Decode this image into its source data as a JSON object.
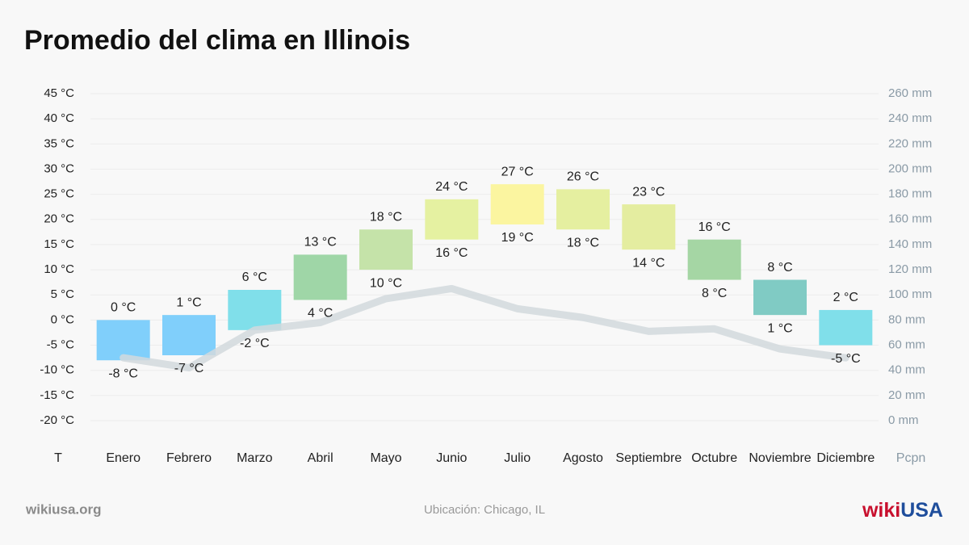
{
  "chart_data": {
    "type": "bar",
    "title": "Promedio del clima en Illinois",
    "ylabel": "T",
    "y2label": "Pcpn",
    "categories": [
      "Enero",
      "Febrero",
      "Marzo",
      "Abril",
      "Mayo",
      "Junio",
      "Julio",
      "Agosto",
      "Septiembre",
      "Octubre",
      "Noviembre",
      "Diciembre"
    ],
    "colors": [
      "#80cffb",
      "#80cffb",
      "#80dfea",
      "#9fd6a7",
      "#c5e3a9",
      "#e5f1a1",
      "#fbf5a0",
      "#e5efa0",
      "#e4eda0",
      "#a5d6a4",
      "#80cbc4",
      "#80dfea"
    ],
    "series": [
      {
        "values": [
          0,
          1,
          6,
          13,
          18,
          24,
          27,
          26,
          23,
          16,
          8,
          2
        ],
        "value_labels": [
          "0 °C",
          "1 °C",
          "6 °C",
          "13 °C",
          "18 °C",
          "24 °C",
          "27 °C",
          "26 °C",
          "23 °C",
          "16 °C",
          "8 °C",
          "2 °C"
        ]
      },
      {
        "values": [
          -8,
          -7,
          -2,
          4,
          10,
          16,
          19,
          18,
          14,
          8,
          1,
          -5
        ],
        "value_labels": [
          "-8 °C",
          "-7 °C",
          "-2 °C",
          "4 °C",
          "10 °C",
          "16 °C",
          "19 °C",
          "18 °C",
          "14 °C",
          "8 °C",
          "1 °C",
          "-5 °C"
        ]
      },
      {
        "type": "line",
        "axis": "y2",
        "color": "#d2d9dd",
        "values": [
          50,
          42,
          72,
          78,
          97,
          105,
          89,
          82,
          71,
          73,
          57,
          50
        ]
      }
    ],
    "ylim": [
      -20,
      45
    ],
    "yticks": [
      {
        "value": -20,
        "label": "-20 °C"
      },
      {
        "value": -15,
        "label": "-15 °C"
      },
      {
        "value": -10,
        "label": "-10 °C"
      },
      {
        "value": -5,
        "label": "-5 °C"
      },
      {
        "value": 0,
        "label": "0 °C"
      },
      {
        "value": 5,
        "label": "5 °C"
      },
      {
        "value": 10,
        "label": "10 °C"
      },
      {
        "value": 15,
        "label": "15 °C"
      },
      {
        "value": 20,
        "label": "20 °C"
      },
      {
        "value": 25,
        "label": "25 °C"
      },
      {
        "value": 30,
        "label": "30 °C"
      },
      {
        "value": 35,
        "label": "35 °C"
      },
      {
        "value": 40,
        "label": "40 °C"
      },
      {
        "value": 45,
        "label": "45 °C"
      }
    ],
    "y2lim": [
      0,
      260
    ],
    "y2ticks": [
      {
        "value": 0,
        "label": "0 mm"
      },
      {
        "value": 20,
        "label": "20 mm"
      },
      {
        "value": 40,
        "label": "40 mm"
      },
      {
        "value": 60,
        "label": "60 mm"
      },
      {
        "value": 80,
        "label": "80 mm"
      },
      {
        "value": 100,
        "label": "100 mm"
      },
      {
        "value": 120,
        "label": "120 mm"
      },
      {
        "value": 140,
        "label": "140 mm"
      },
      {
        "value": 160,
        "label": "160 mm"
      },
      {
        "value": 180,
        "label": "180 mm"
      },
      {
        "value": 200,
        "label": "200 mm"
      },
      {
        "value": 220,
        "label": "220 mm"
      },
      {
        "value": 240,
        "label": "240 mm"
      },
      {
        "value": 260,
        "label": "260 mm"
      }
    ],
    "grid": true
  },
  "footer": {
    "site": "wikiusa.org",
    "location": "Ubicación: Chicago, IL",
    "logo": [
      "wiki",
      "USA"
    ]
  }
}
